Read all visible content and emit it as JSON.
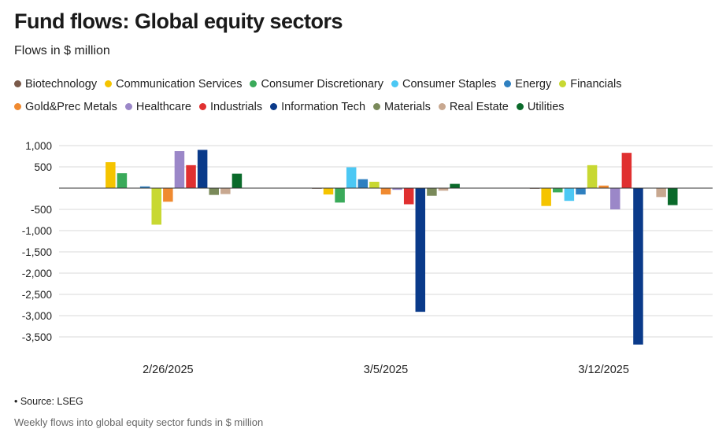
{
  "chart_data": {
    "type": "bar",
    "title": "Fund flows: Global equity sectors",
    "subtitle": "Flows in $ million",
    "xlabel": "",
    "ylabel": "",
    "ylim": [
      -3700,
      1000
    ],
    "yticks": [
      1000,
      500,
      -500,
      -1000,
      -1500,
      -2000,
      -2500,
      -3000,
      -3500
    ],
    "ytick_labels": [
      "1,000",
      "500",
      "-500",
      "-1,000",
      "-1,500",
      "-2,000",
      "-2,500",
      "-3,000",
      "-3,500"
    ],
    "categories": [
      "2/26/2025",
      "3/5/2025",
      "3/12/2025"
    ],
    "legend_position": "top",
    "series": [
      {
        "name": "Biotechnology",
        "color": "#7a5a4a",
        "values": [
          0,
          -10,
          -15
        ]
      },
      {
        "name": "Communication Services",
        "color": "#f5c400",
        "values": [
          610,
          -150,
          -420
        ]
      },
      {
        "name": "Consumer Discretionary",
        "color": "#3aaa5a",
        "values": [
          350,
          -340,
          -100
        ]
      },
      {
        "name": "Consumer Staples",
        "color": "#4cc8f4",
        "values": [
          0,
          490,
          -300
        ]
      },
      {
        "name": "Energy",
        "color": "#2f80c0",
        "values": [
          40,
          210,
          -150
        ]
      },
      {
        "name": "Financials",
        "color": "#c8d832",
        "values": [
          -860,
          150,
          540
        ]
      },
      {
        "name": "Gold&Prec Metals",
        "color": "#f08a30",
        "values": [
          -320,
          -150,
          60
        ]
      },
      {
        "name": "Healthcare",
        "color": "#9b87c8",
        "values": [
          870,
          -40,
          -500
        ]
      },
      {
        "name": "Industrials",
        "color": "#e03030",
        "values": [
          540,
          -380,
          830
        ]
      },
      {
        "name": "Information Tech",
        "color": "#0a3a8a",
        "values": [
          900,
          -2910,
          -3680
        ]
      },
      {
        "name": "Materials",
        "color": "#7a8a5a",
        "values": [
          -160,
          -180,
          0
        ]
      },
      {
        "name": "Real Estate",
        "color": "#c8a890",
        "values": [
          -140,
          -60,
          -210
        ]
      },
      {
        "name": "Utilities",
        "color": "#0a6a2a",
        "values": [
          340,
          100,
          -400
        ]
      }
    ]
  },
  "footer": {
    "source": "• Source: LSEG",
    "note": "Weekly flows into global equity sector funds in $ million"
  }
}
